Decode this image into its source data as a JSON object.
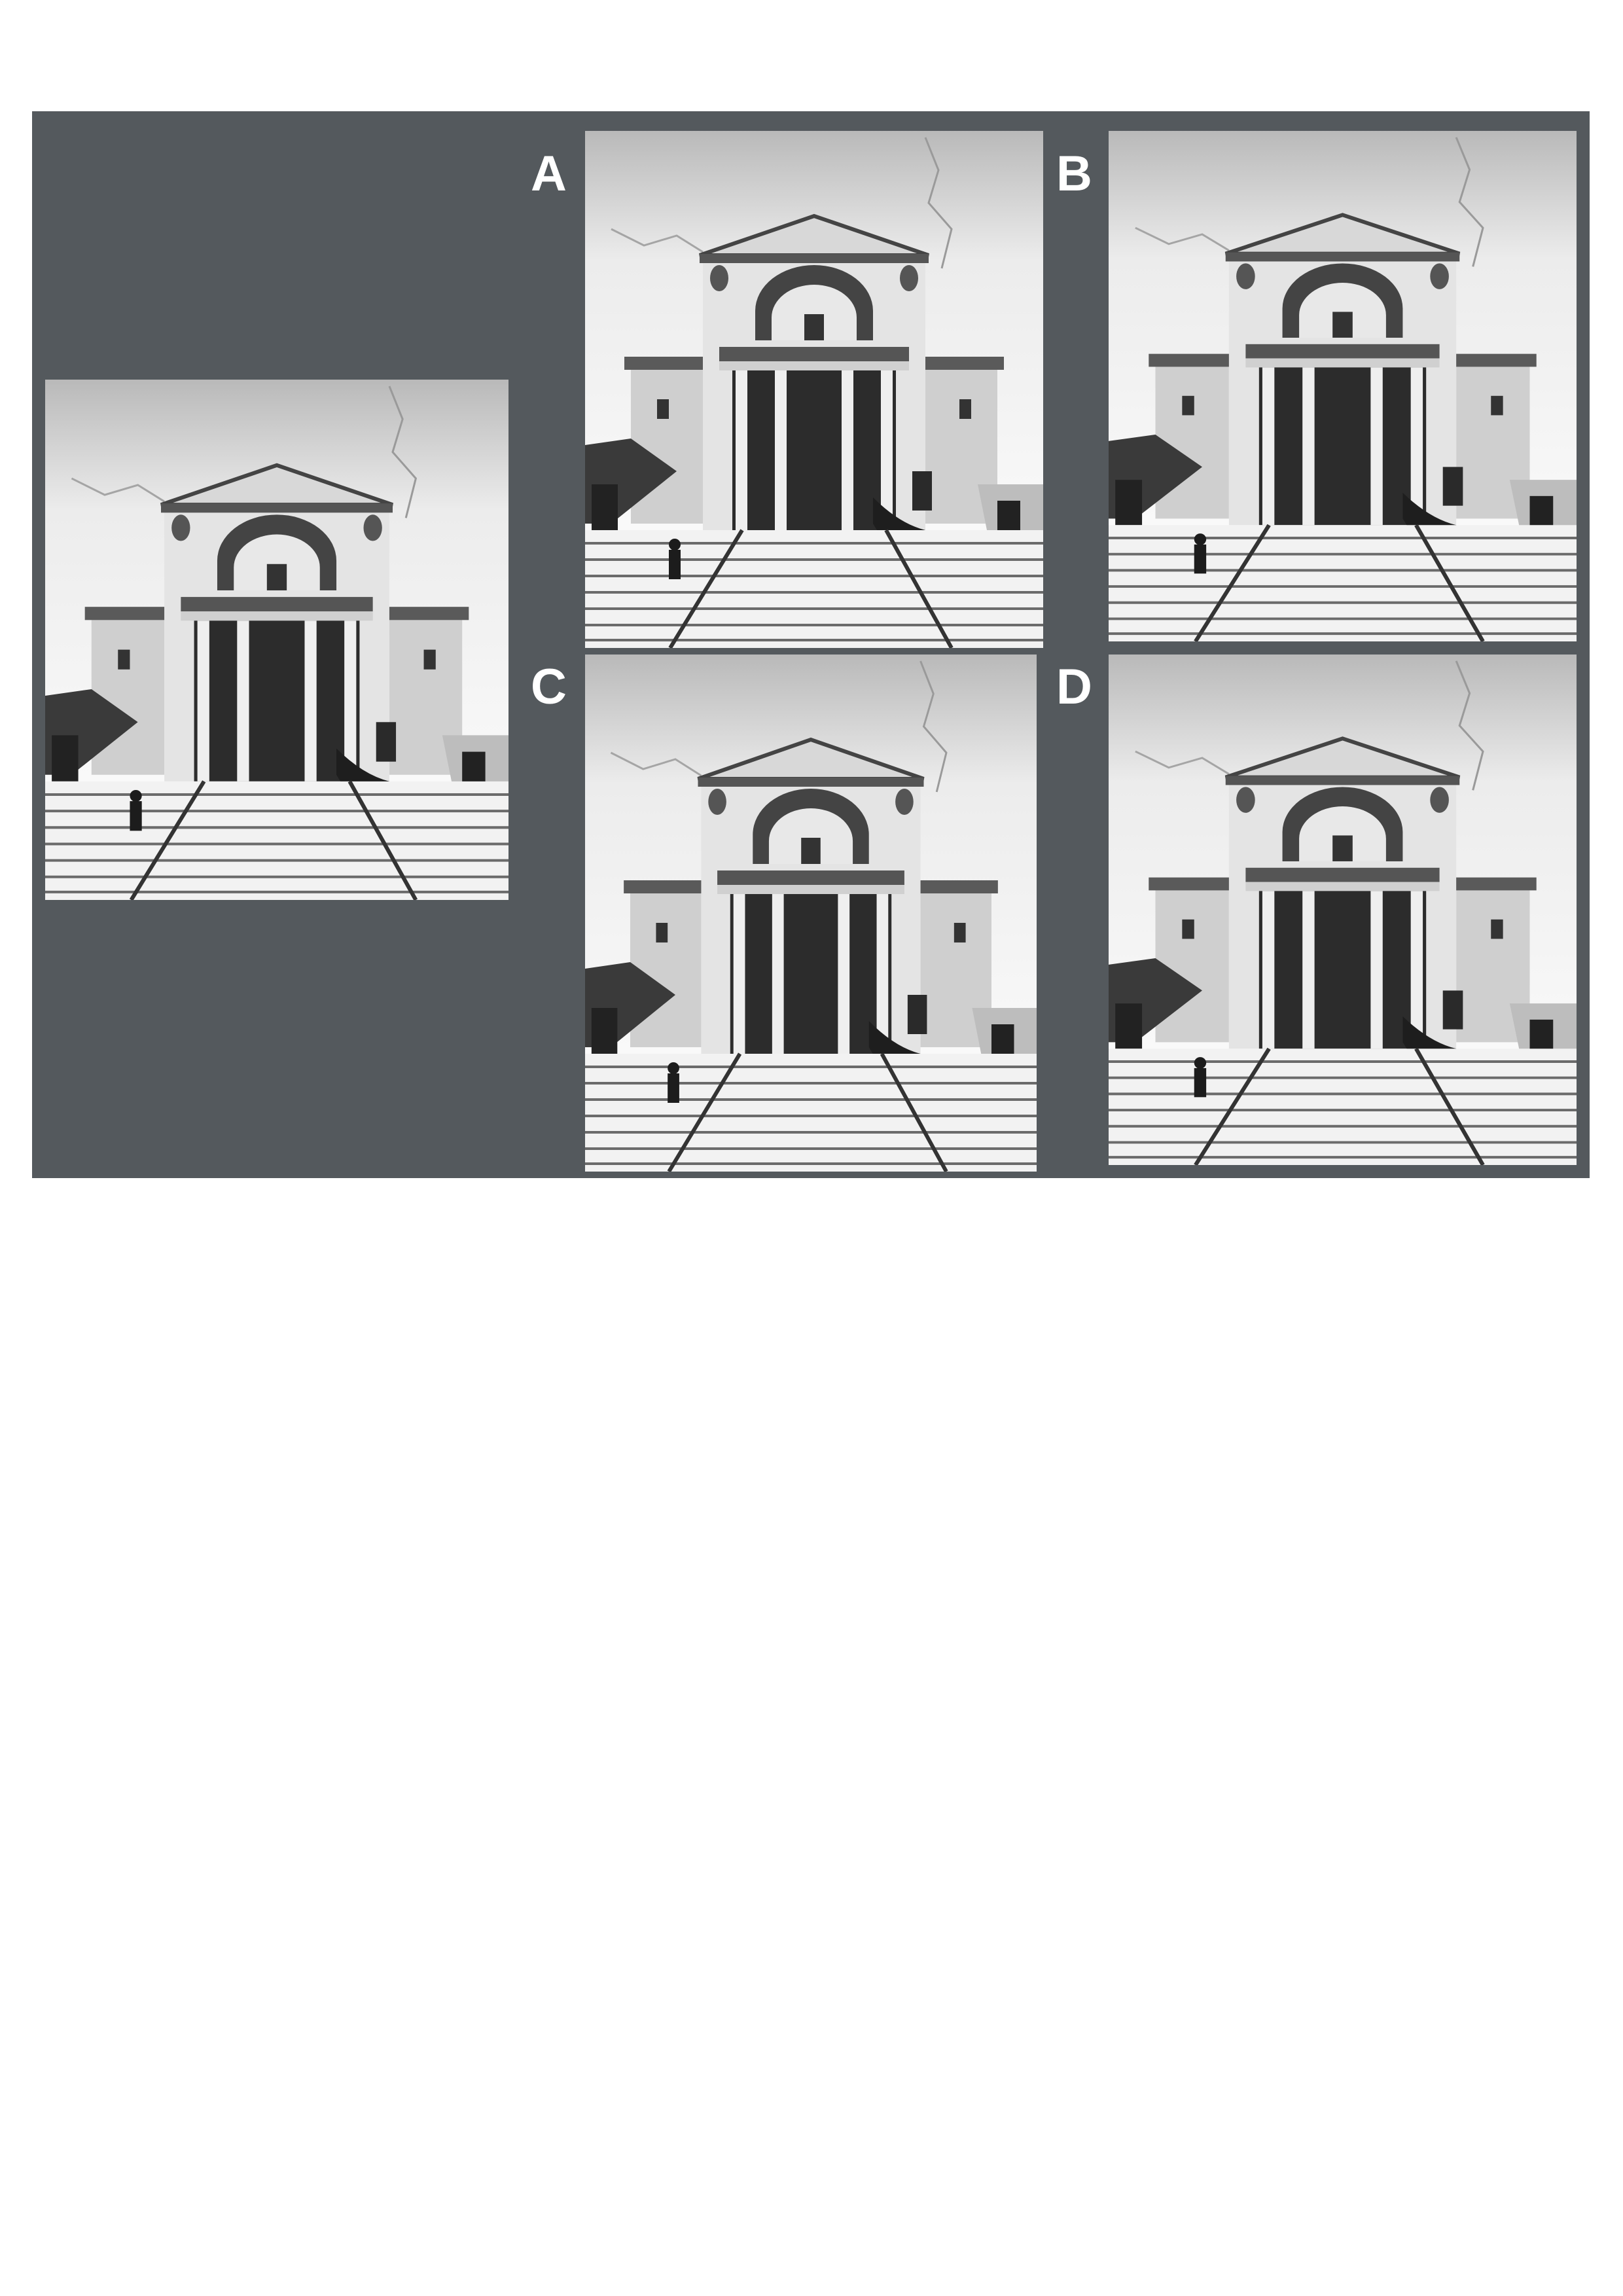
{
  "colors": {
    "background": "#54595d",
    "page": "#ffffff",
    "sky": "#f3f3f3",
    "stone": "#e2e2e2",
    "dark": "#2a2c2e"
  },
  "panels": [
    {
      "id": "original",
      "label": ""
    },
    {
      "id": "A",
      "label": "A"
    },
    {
      "id": "B",
      "label": "B"
    },
    {
      "id": "C",
      "label": "C"
    },
    {
      "id": "D",
      "label": "D"
    }
  ]
}
